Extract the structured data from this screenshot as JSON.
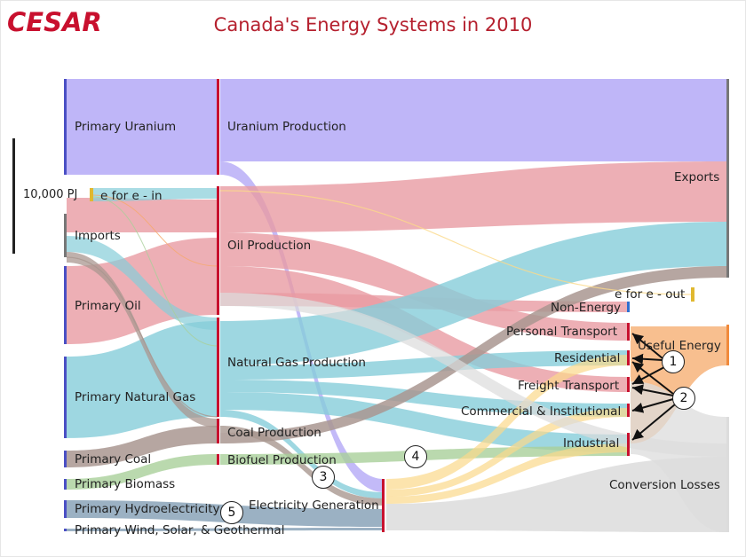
{
  "header": {
    "logo_text": "CESAR",
    "title": "Canada's Energy Systems in 2010"
  },
  "scale": {
    "label": "10,000 PJ"
  },
  "nodes": {
    "primary_uranium": "Primary Uranium",
    "e_for_e_in": "e for e - in",
    "imports": "Imports",
    "primary_oil": "Primary Oil",
    "primary_natural_gas": "Primary Natural Gas",
    "primary_coal": "Primary Coal",
    "primary_biomass": "Primary Biomass",
    "primary_hydro": "Primary Hydroelectricity",
    "primary_wind": "Primary Wind, Solar, & Geothermal",
    "uranium_production": "Uranium Production",
    "oil_production": "Oil Production",
    "natural_gas_production": "Natural Gas Production",
    "coal_production": "Coal Production",
    "biofuel_production": "Biofuel Production",
    "electricity_generation": "Electricity Generation",
    "exports": "Exports",
    "e_for_e_out": "e for e - out",
    "non_energy": "Non-Energy",
    "personal_transport": "Personal Transport",
    "residential": "Residential",
    "freight_transport": "Freight Transport",
    "commercial": "Commercial & Institutional",
    "industrial": "Industrial",
    "useful_energy": "Useful Energy",
    "conversion_losses": "Conversion Losses"
  },
  "callouts": [
    "1",
    "2",
    "3",
    "4",
    "5"
  ],
  "colors": {
    "uranium": "#b8aef7",
    "oil": "#e89ba2",
    "gas": "#86cdd9",
    "coal": "#a99790",
    "biomass": "#a9cf9a",
    "hydro": "#8aa3b8",
    "electricity": "#fbd98a",
    "losses": "#dcdcdc",
    "useful": "#f6a96a",
    "node_red": "#c8102e",
    "node_blue": "#4a4fc4",
    "node_gray": "#777777",
    "title_red": "#b5202e"
  }
}
